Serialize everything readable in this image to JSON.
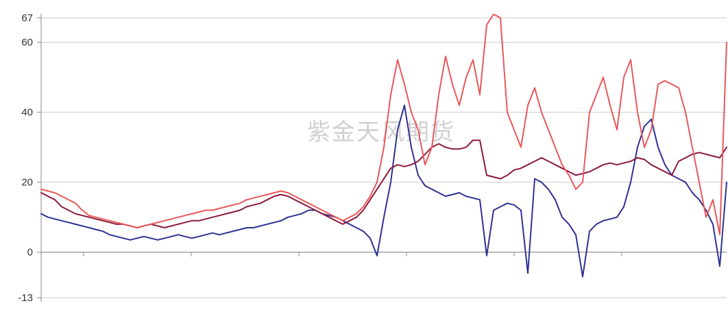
{
  "chart_data": {
    "type": "line",
    "title": "",
    "xlabel": "",
    "ylabel": "",
    "ylim": [
      -13,
      67
    ],
    "y_ticks": [
      67,
      60,
      40,
      20,
      0,
      -13
    ],
    "grid": true,
    "legend": "none",
    "x": [
      0,
      5,
      10,
      15,
      20,
      25,
      30,
      35,
      40,
      45,
      50,
      55,
      60,
      65,
      70,
      75,
      80,
      85,
      90,
      95,
      100,
      105,
      110,
      115,
      120,
      125,
      130,
      135,
      140,
      145,
      150,
      155,
      160,
      165,
      170,
      175,
      180,
      185,
      190,
      195,
      200,
      205,
      210,
      215,
      220,
      225,
      230,
      235,
      240,
      245,
      250,
      255,
      260,
      265,
      270,
      275,
      280,
      285,
      290,
      295,
      300,
      305,
      310,
      315,
      320,
      325,
      330,
      335,
      340,
      345,
      350,
      355,
      360,
      365,
      370,
      375,
      380,
      385,
      390,
      395,
      400,
      405,
      410,
      415,
      420,
      425,
      430,
      435,
      440,
      445,
      450,
      455,
      460,
      465,
      470,
      475,
      480,
      485,
      490,
      495,
      500
    ],
    "series": [
      {
        "color": "#2e3192",
        "values": [
          11,
          10,
          9.5,
          9,
          8.5,
          8,
          7.5,
          7,
          6.5,
          6,
          5,
          4.5,
          4,
          3.5,
          4,
          4.5,
          4,
          3.5,
          4,
          4.5,
          5,
          4.5,
          4,
          4.5,
          5,
          5.5,
          5,
          5.5,
          6,
          6.5,
          7,
          7,
          7.5,
          8,
          8.5,
          9,
          10,
          10.5,
          11,
          12,
          12,
          11,
          10.5,
          10,
          9,
          8,
          7,
          6,
          4,
          -1,
          10,
          20,
          35,
          42,
          30,
          22,
          19,
          18,
          17,
          16,
          16.5,
          17,
          16,
          15.5,
          15,
          -1,
          12,
          13,
          14,
          13.5,
          12,
          -6,
          21,
          20,
          18,
          15,
          10,
          8,
          5,
          -7,
          6,
          8,
          9,
          9.5,
          10,
          13,
          20,
          30,
          36,
          38,
          30,
          25,
          22,
          21,
          20,
          17,
          15,
          12,
          8,
          -4,
          20
        ]
      },
      {
        "color": "#8b1a3a",
        "values": [
          17,
          16,
          15,
          13,
          12,
          11,
          10.5,
          10,
          9.5,
          9,
          8.5,
          8,
          8,
          7.5,
          7,
          7.5,
          8,
          7.5,
          7,
          7.5,
          8,
          8.5,
          9,
          9,
          9.5,
          10,
          10.5,
          11,
          11.5,
          12,
          13,
          13.5,
          14,
          15,
          16,
          16.5,
          16,
          15,
          14,
          13,
          12,
          11,
          10,
          9,
          8,
          9,
          10,
          12,
          15,
          18,
          21,
          24,
          25,
          24.5,
          25,
          26,
          28,
          30,
          31,
          30,
          29.5,
          29.5,
          30,
          32,
          32,
          22,
          21.5,
          21,
          22,
          23.5,
          24,
          25,
          26,
          27,
          26,
          25,
          24,
          23,
          22,
          22.5,
          23,
          24,
          25,
          25.5,
          25,
          25.5,
          26,
          27,
          26.5,
          25,
          24,
          23,
          22,
          26,
          27,
          28,
          28.5,
          28,
          27.5,
          27,
          30
        ]
      },
      {
        "color": "#e8575a",
        "values": [
          18,
          17.5,
          17,
          16,
          15,
          14,
          12,
          10.5,
          10,
          9.5,
          9,
          8.5,
          8,
          7.5,
          7,
          7.5,
          8,
          8.5,
          9,
          9.5,
          10,
          10.5,
          11,
          11.5,
          12,
          12,
          12.5,
          13,
          13.5,
          14,
          15,
          15.5,
          16,
          16.5,
          17,
          17.5,
          17,
          16,
          15,
          14,
          13,
          12,
          11,
          10,
          9,
          10,
          11,
          13,
          16,
          20,
          30,
          45,
          55,
          48,
          40,
          35,
          25,
          30,
          45,
          56,
          48,
          42,
          50,
          55,
          45,
          65,
          68,
          67,
          40,
          35,
          30,
          42,
          47,
          40,
          35,
          30,
          25,
          22,
          18,
          20,
          40,
          45,
          50,
          42,
          35,
          50,
          55,
          40,
          30,
          35,
          48,
          49,
          48,
          47,
          40,
          30,
          20,
          10,
          15,
          5,
          60
        ]
      }
    ]
  },
  "watermark": "紫金天风期货"
}
